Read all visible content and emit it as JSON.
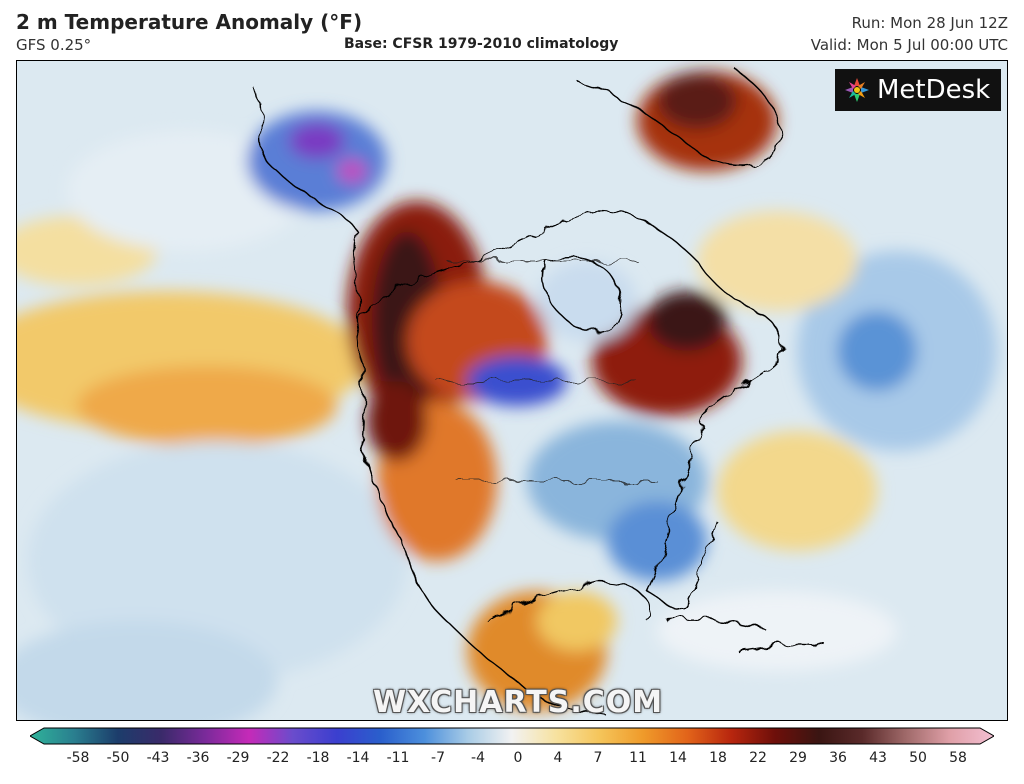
{
  "header": {
    "title": "2 m Temperature Anomaly (°F)",
    "model": "GFS 0.25°",
    "base": "Base: CFSR 1979-2010 climatology",
    "run": "Run: Mon 28 Jun 12Z",
    "valid": "Valid: Mon 5 Jul 00:00 UTC"
  },
  "logo": {
    "text": "MetDesk"
  },
  "watermark": {
    "text": "WXCHARTS.COM"
  },
  "colorbar": {
    "ticks": [
      "-58",
      "-50",
      "-43",
      "-36",
      "-29",
      "-22",
      "-18",
      "-14",
      "-11",
      "-7",
      "-4",
      "0",
      "4",
      "7",
      "11",
      "14",
      "18",
      "22",
      "29",
      "36",
      "43",
      "50",
      "58"
    ],
    "colors": [
      "#2fb39a",
      "#2a7f8f",
      "#1c3d6b",
      "#3a2a6a",
      "#7a2a9a",
      "#c52ab8",
      "#6a4ccc",
      "#3b3fcf",
      "#2a5fcc",
      "#4c8fdc",
      "#a9cce6",
      "#f2f2f2",
      "#f7e2a0",
      "#f5c55a",
      "#ef9a2a",
      "#e2641a",
      "#b8260e",
      "#6e0f0a",
      "#3a1512",
      "#5a2a2a",
      "#a06a6a",
      "#e0a0a8",
      "#f3bfd2"
    ]
  }
}
